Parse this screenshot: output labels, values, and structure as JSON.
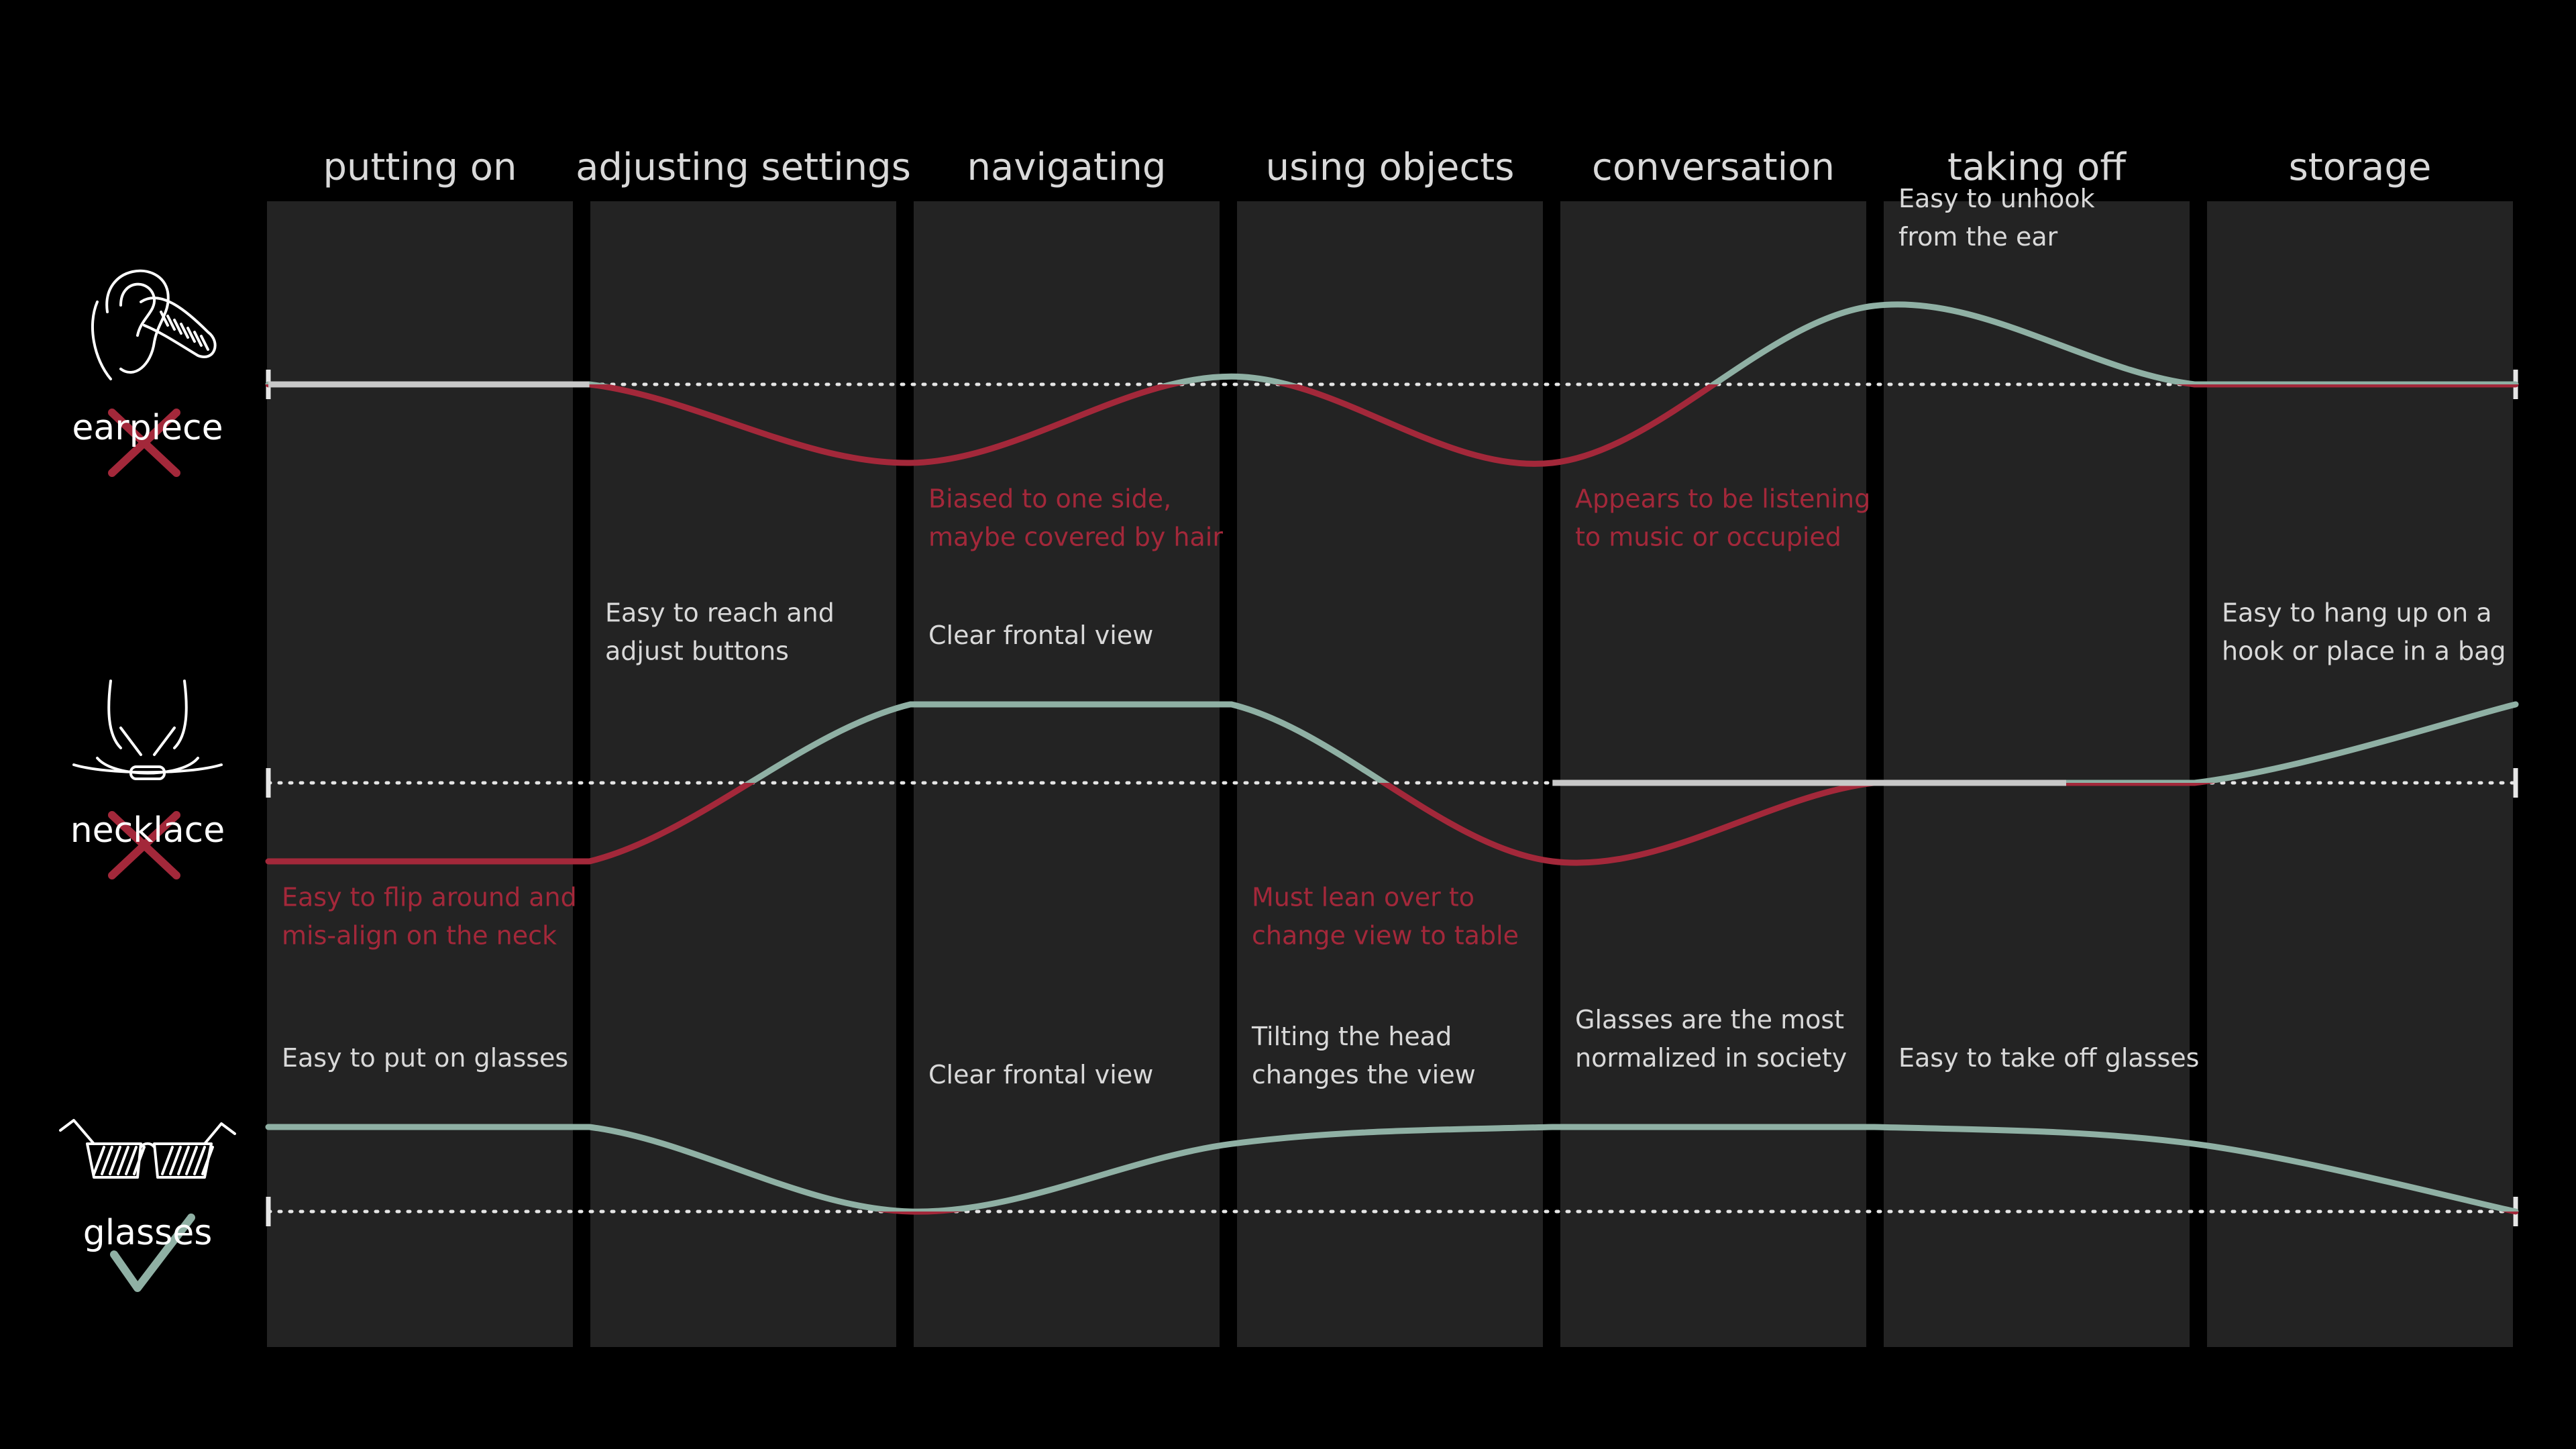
{
  "colors": {
    "background": "#000000",
    "column": "#232323",
    "header_text": "#d9d9d9",
    "neutral_line": "#c8c8c8",
    "negative": "#a3283a",
    "positive": "#8fb0a4",
    "note_positive": "#d9d9d9",
    "baseline": "#e6e6e6",
    "icon": "#ffffff"
  },
  "stages": [
    {
      "label": "putting on"
    },
    {
      "label": "adjusting settings"
    },
    {
      "label": "navigating"
    },
    {
      "label": "using objects"
    },
    {
      "label": "conversation"
    },
    {
      "label": "taking off"
    },
    {
      "label": "storage"
    }
  ],
  "devices": [
    {
      "key": "earpiece",
      "label": "earpiece",
      "icon": "ear-icon",
      "verdict": "cross-mark",
      "curve": [
        0,
        0,
        -1,
        0.1,
        -1,
        1,
        0,
        0
      ],
      "neutral_until": 1,
      "notes": [
        {
          "stage": 2,
          "tone": "negative",
          "lines": [
            "Biased to one side,",
            "maybe covered by hair"
          ]
        },
        {
          "stage": 4,
          "tone": "negative",
          "lines": [
            "Appears to be listening",
            "to music or occupied"
          ]
        },
        {
          "stage": 5,
          "tone": "positive",
          "lines": [
            "Easy to unhook",
            "from the ear"
          ]
        }
      ]
    },
    {
      "key": "necklace",
      "label": "necklace",
      "icon": "necklace-icon",
      "verdict": "cross-mark",
      "curve": [
        -1,
        -1,
        1,
        1,
        -1,
        0,
        0,
        1
      ],
      "neutral_from": 4,
      "neutral_to": 5.6,
      "notes": [
        {
          "stage": 0,
          "tone": "negative",
          "lines": [
            "Easy to flip around and",
            "mis-align on the neck"
          ]
        },
        {
          "stage": 1,
          "tone": "positive",
          "lines": [
            "Easy to reach and",
            "adjust buttons"
          ]
        },
        {
          "stage": 2,
          "tone": "positive",
          "lines": [
            "Clear frontal view"
          ]
        },
        {
          "stage": 3,
          "tone": "negative",
          "lines": [
            "Must lean over to",
            "change view to table"
          ]
        },
        {
          "stage": 6,
          "tone": "positive",
          "lines": [
            "Easy to hang up on a",
            "hook or place in a bag"
          ]
        }
      ]
    },
    {
      "key": "glasses",
      "label": "glasses",
      "icon": "glasses-icon",
      "verdict": "check-mark",
      "curve": [
        1,
        1,
        0,
        0.8,
        1,
        1,
        0.8,
        0
      ],
      "notes": [
        {
          "stage": 0,
          "tone": "positive",
          "lines": [
            "Easy to put on glasses"
          ]
        },
        {
          "stage": 2,
          "tone": "positive",
          "lines": [
            "Clear frontal view"
          ]
        },
        {
          "stage": 3,
          "tone": "positive",
          "lines": [
            "Tilting the head",
            "changes the view"
          ]
        },
        {
          "stage": 4,
          "tone": "positive",
          "lines": [
            "Glasses are the most",
            "normalized in society"
          ]
        },
        {
          "stage": 5,
          "tone": "positive",
          "lines": [
            "Easy to take off glasses"
          ]
        }
      ]
    }
  ]
}
